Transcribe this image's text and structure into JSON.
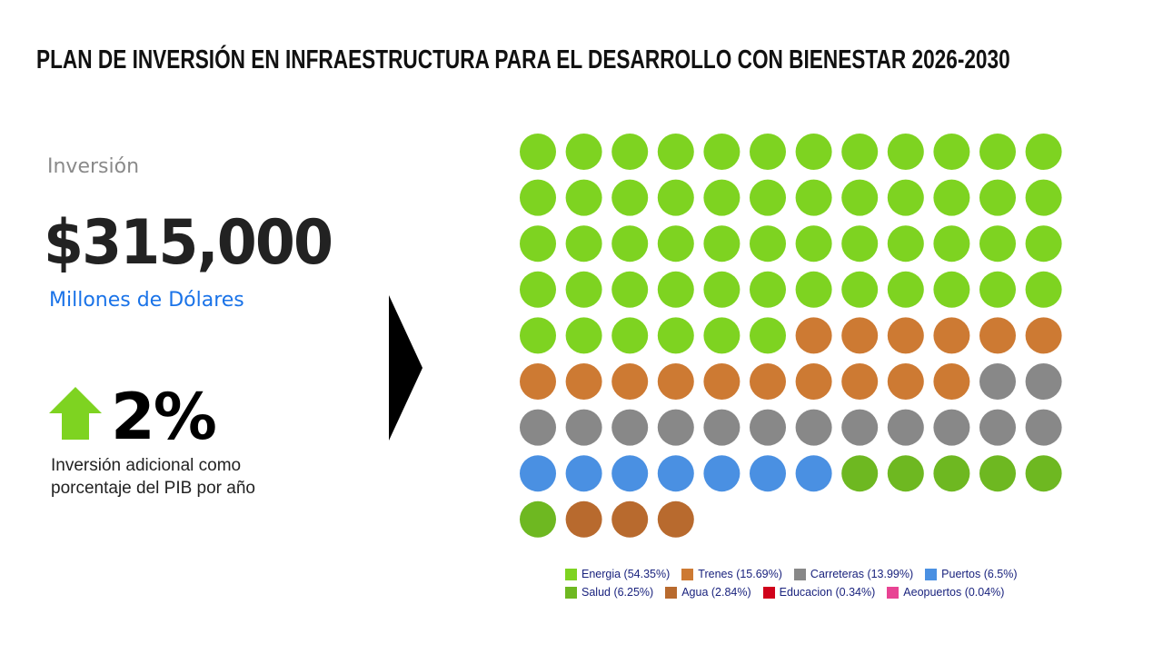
{
  "title": "PLAN DE INVERSIÓN EN INFRAESTRUCTURA PARA EL DESARROLLO CON BIENESTAR 2026-2030",
  "investment": {
    "label": "Inversión",
    "amount": "$315,000",
    "unit": "Millones de Dólares"
  },
  "growth": {
    "value": "2%",
    "description": "Inversión adicional como porcentaje del PIB por año",
    "arrow_color": "#7ed321"
  },
  "chart_data": {
    "type": "waffle",
    "columns": 12,
    "categories": [
      {
        "name": "Energia",
        "label": "Energia (54.35%)",
        "percent": 54.35,
        "dots": 54,
        "color": "#7ed321"
      },
      {
        "name": "Trenes",
        "label": "Trenes (15.69%)",
        "percent": 15.69,
        "dots": 16,
        "color": "#cd7a33"
      },
      {
        "name": "Carreteras",
        "label": "Carreteras (13.99%)",
        "percent": 13.99,
        "dots": 14,
        "color": "#888888"
      },
      {
        "name": "Puertos",
        "label": "Puertos (6.5%)",
        "percent": 6.5,
        "dots": 7,
        "color": "#4a90e2"
      },
      {
        "name": "Salud",
        "label": "Salud (6.25%)",
        "percent": 6.25,
        "dots": 6,
        "color": "#6eb821"
      },
      {
        "name": "Agua",
        "label": "Agua (2.84%)",
        "percent": 2.84,
        "dots": 3,
        "color": "#b86a2e"
      },
      {
        "name": "Educacion",
        "label": "Educacion (0.34%)",
        "percent": 0.34,
        "dots": 0,
        "color": "#d0021b"
      },
      {
        "name": "Aeopuertos",
        "label": "Aeopuertos (0.04%)",
        "percent": 0.04,
        "dots": 0,
        "color": "#e84393"
      }
    ],
    "legend_rows": [
      [
        0,
        1,
        2,
        3
      ],
      [
        4,
        5,
        6,
        7
      ]
    ]
  }
}
